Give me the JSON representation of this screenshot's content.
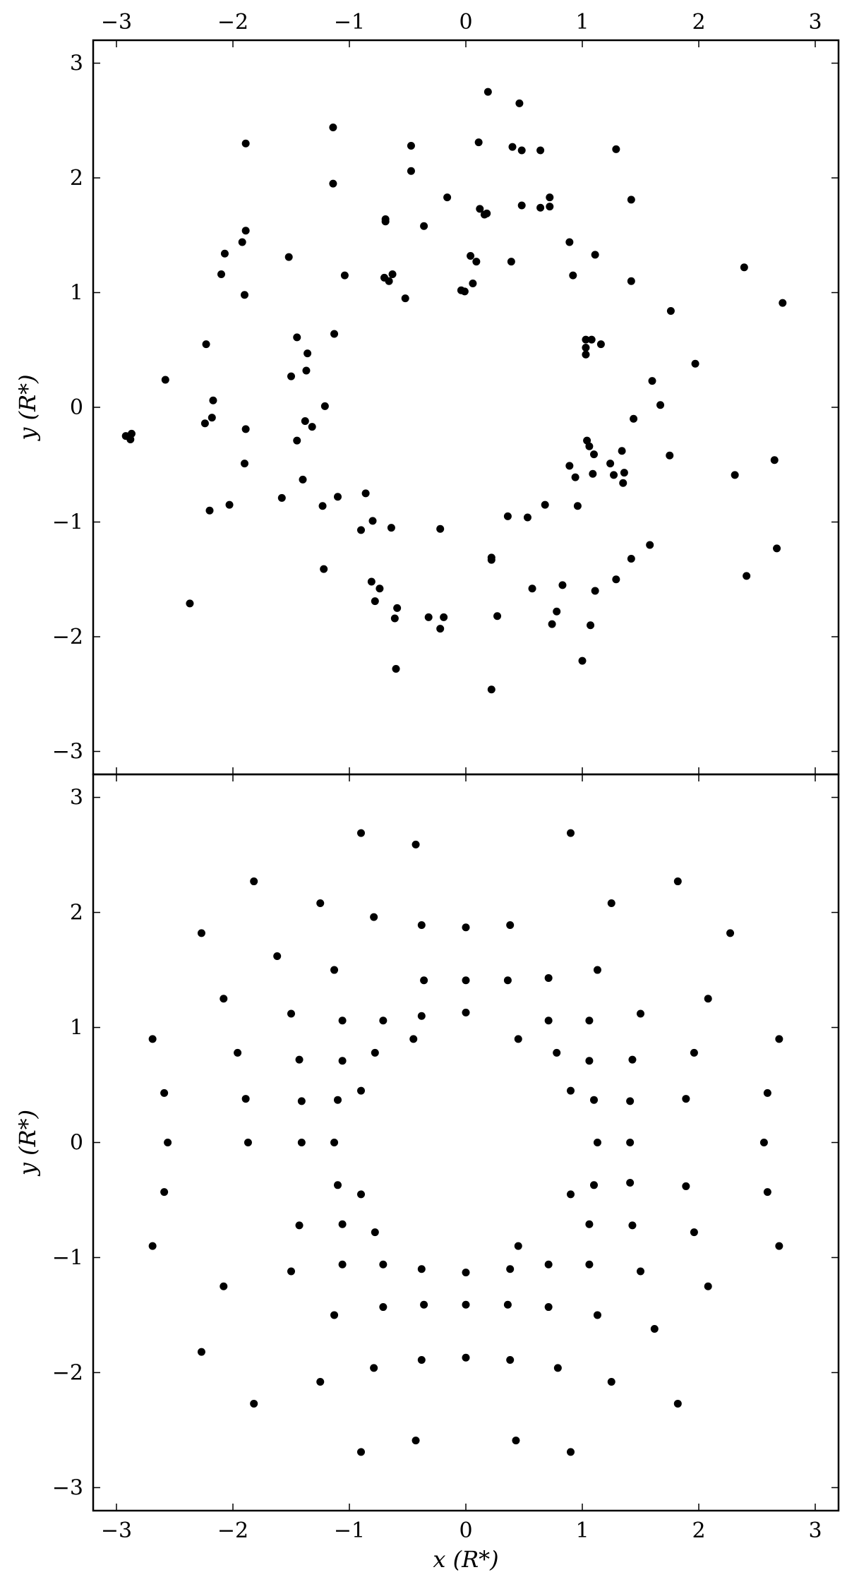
{
  "chart_data": [
    {
      "type": "scatter",
      "title": "",
      "xlabel": "",
      "ylabel": "y (R*)",
      "xlim": [
        -3.2,
        3.2
      ],
      "ylim": [
        -3.2,
        3.2
      ],
      "xticks": [
        "−3",
        "−2",
        "−1",
        "0",
        "1",
        "2",
        "3"
      ],
      "yticks": [
        "3",
        "2",
        "1",
        "0",
        "−1",
        "−2",
        "−3"
      ],
      "x_ticks_on_top": true,
      "grid": false,
      "marker_color": "#000000",
      "points": [
        [
          -2.92,
          -0.25
        ],
        [
          -2.88,
          -0.28
        ],
        [
          -2.87,
          -0.23
        ],
        [
          -2.58,
          0.24
        ],
        [
          -2.37,
          -1.71
        ],
        [
          -2.24,
          -0.14
        ],
        [
          -2.23,
          0.55
        ],
        [
          -2.2,
          -0.9
        ],
        [
          -2.17,
          0.06
        ],
        [
          -2.18,
          -0.09
        ],
        [
          -2.1,
          1.16
        ],
        [
          -2.07,
          1.34
        ],
        [
          -2.03,
          -0.85
        ],
        [
          -1.92,
          1.44
        ],
        [
          -1.89,
          2.3
        ],
        [
          -1.89,
          1.54
        ],
        [
          -1.9,
          0.98
        ],
        [
          -1.89,
          -0.19
        ],
        [
          -1.9,
          -0.49
        ],
        [
          -1.58,
          -0.79
        ],
        [
          -1.52,
          1.31
        ],
        [
          -1.5,
          0.27
        ],
        [
          -1.45,
          0.61
        ],
        [
          -1.45,
          -0.29
        ],
        [
          -1.4,
          -0.63
        ],
        [
          -1.38,
          -0.12
        ],
        [
          -1.36,
          0.47
        ],
        [
          -1.37,
          0.32
        ],
        [
          -1.32,
          -0.17
        ],
        [
          -1.23,
          -0.86
        ],
        [
          -1.22,
          -1.41
        ],
        [
          -1.21,
          0.01
        ],
        [
          -1.14,
          2.44
        ],
        [
          -1.14,
          1.95
        ],
        [
          -1.13,
          0.64
        ],
        [
          -1.1,
          -0.78
        ],
        [
          -1.04,
          1.15
        ],
        [
          -0.9,
          -1.07
        ],
        [
          -0.86,
          -0.75
        ],
        [
          -0.81,
          -1.52
        ],
        [
          -0.8,
          -0.99
        ],
        [
          -0.78,
          -1.69
        ],
        [
          -0.74,
          -1.58
        ],
        [
          -0.7,
          1.13
        ],
        [
          -0.69,
          1.62
        ],
        [
          -0.69,
          1.64
        ],
        [
          -0.66,
          1.1
        ],
        [
          -0.63,
          1.16
        ],
        [
          -0.64,
          -1.05
        ],
        [
          -0.61,
          -1.84
        ],
        [
          -0.59,
          -1.75
        ],
        [
          -0.6,
          -2.28
        ],
        [
          -0.52,
          0.95
        ],
        [
          -0.47,
          2.28
        ],
        [
          -0.47,
          2.06
        ],
        [
          -0.36,
          1.58
        ],
        [
          -0.32,
          -1.83
        ],
        [
          -0.22,
          -1.93
        ],
        [
          -0.22,
          -1.06
        ],
        [
          -0.19,
          -1.83
        ],
        [
          -0.16,
          1.83
        ],
        [
          -0.04,
          1.02
        ],
        [
          -0.01,
          1.01
        ],
        [
          0.04,
          1.32
        ],
        [
          0.06,
          1.08
        ],
        [
          0.09,
          1.27
        ],
        [
          0.11,
          2.31
        ],
        [
          0.12,
          1.73
        ],
        [
          0.16,
          1.68
        ],
        [
          0.18,
          1.69
        ],
        [
          0.19,
          2.75
        ],
        [
          0.22,
          -1.31
        ],
        [
          0.22,
          -1.33
        ],
        [
          0.22,
          -2.46
        ],
        [
          0.27,
          -1.82
        ],
        [
          0.36,
          -0.95
        ],
        [
          0.39,
          1.27
        ],
        [
          0.4,
          2.27
        ],
        [
          0.46,
          2.65
        ],
        [
          0.48,
          2.24
        ],
        [
          0.48,
          1.76
        ],
        [
          0.53,
          -0.96
        ],
        [
          0.57,
          -1.58
        ],
        [
          0.64,
          2.24
        ],
        [
          0.64,
          1.74
        ],
        [
          0.68,
          -0.85
        ],
        [
          0.72,
          1.83
        ],
        [
          0.72,
          1.75
        ],
        [
          0.74,
          -1.89
        ],
        [
          0.78,
          -1.78
        ],
        [
          0.83,
          -1.55
        ],
        [
          0.89,
          1.44
        ],
        [
          0.89,
          -0.51
        ],
        [
          0.92,
          1.15
        ],
        [
          0.94,
          -0.61
        ],
        [
          0.96,
          -0.86
        ],
        [
          1.0,
          -2.21
        ],
        [
          1.03,
          0.52
        ],
        [
          1.03,
          0.46
        ],
        [
          1.03,
          0.59
        ],
        [
          1.04,
          -0.29
        ],
        [
          1.06,
          -0.34
        ],
        [
          1.07,
          -1.9
        ],
        [
          1.08,
          0.59
        ],
        [
          1.09,
          -0.58
        ],
        [
          1.1,
          -0.41
        ],
        [
          1.11,
          1.33
        ],
        [
          1.11,
          -1.6
        ],
        [
          1.16,
          0.55
        ],
        [
          1.24,
          -0.49
        ],
        [
          1.27,
          -0.59
        ],
        [
          1.29,
          2.25
        ],
        [
          1.29,
          -1.5
        ],
        [
          1.34,
          -0.38
        ],
        [
          1.35,
          -0.66
        ],
        [
          1.36,
          -0.57
        ],
        [
          1.42,
          1.81
        ],
        [
          1.42,
          1.1
        ],
        [
          1.42,
          -1.32
        ],
        [
          1.44,
          -0.1
        ],
        [
          1.58,
          -1.2
        ],
        [
          1.6,
          0.23
        ],
        [
          1.67,
          0.02
        ],
        [
          1.75,
          -0.42
        ],
        [
          1.76,
          0.84
        ],
        [
          1.97,
          0.38
        ],
        [
          2.31,
          -0.59
        ],
        [
          2.39,
          1.22
        ],
        [
          2.41,
          -1.47
        ],
        [
          2.65,
          -0.46
        ],
        [
          2.67,
          -1.23
        ],
        [
          2.72,
          0.91
        ]
      ]
    },
    {
      "type": "scatter",
      "title": "",
      "xlabel": "x (R*)",
      "ylabel": "y (R*)",
      "xlim": [
        -3.2,
        3.2
      ],
      "ylim": [
        -3.2,
        3.2
      ],
      "xticks": [
        "−3",
        "−2",
        "−1",
        "0",
        "1",
        "2",
        "3"
      ],
      "yticks": [
        "3",
        "2",
        "1",
        "0",
        "−1",
        "−2",
        "−3"
      ],
      "grid": false,
      "marker_color": "#000000",
      "points": [
        [
          -0.9,
          2.69
        ],
        [
          -0.43,
          2.59
        ],
        [
          0.9,
          2.69
        ],
        [
          -1.82,
          2.27
        ],
        [
          1.82,
          2.27
        ],
        [
          -1.25,
          2.08
        ],
        [
          1.25,
          2.08
        ],
        [
          -0.79,
          1.96
        ],
        [
          -0.38,
          1.89
        ],
        [
          0.0,
          1.87
        ],
        [
          0.38,
          1.89
        ],
        [
          -2.27,
          1.82
        ],
        [
          2.27,
          1.82
        ],
        [
          -1.62,
          1.62
        ],
        [
          -1.13,
          1.5
        ],
        [
          1.13,
          1.5
        ],
        [
          -0.36,
          1.41
        ],
        [
          0.0,
          1.41
        ],
        [
          0.36,
          1.41
        ],
        [
          0.71,
          1.43
        ],
        [
          -2.08,
          1.25
        ],
        [
          2.08,
          1.25
        ],
        [
          -1.5,
          1.12
        ],
        [
          -0.38,
          1.1
        ],
        [
          0.0,
          1.13
        ],
        [
          1.5,
          1.12
        ],
        [
          -1.06,
          1.06
        ],
        [
          -0.71,
          1.06
        ],
        [
          0.71,
          1.06
        ],
        [
          1.06,
          1.06
        ],
        [
          -2.69,
          0.9
        ],
        [
          -0.45,
          0.9
        ],
        [
          0.45,
          0.9
        ],
        [
          2.69,
          0.9
        ],
        [
          -1.96,
          0.78
        ],
        [
          -0.78,
          0.78
        ],
        [
          0.78,
          0.78
        ],
        [
          1.96,
          0.78
        ],
        [
          -1.43,
          0.72
        ],
        [
          -1.06,
          0.71
        ],
        [
          1.06,
          0.71
        ],
        [
          1.43,
          0.72
        ],
        [
          -0.9,
          0.45
        ],
        [
          0.9,
          0.45
        ],
        [
          -2.59,
          0.43
        ],
        [
          2.59,
          0.43
        ],
        [
          -1.89,
          0.38
        ],
        [
          -1.41,
          0.36
        ],
        [
          -1.1,
          0.37
        ],
        [
          1.1,
          0.37
        ],
        [
          1.41,
          0.36
        ],
        [
          1.89,
          0.38
        ],
        [
          -2.56,
          0.0
        ],
        [
          -1.87,
          0.0
        ],
        [
          -1.41,
          0.0
        ],
        [
          -1.13,
          0.0
        ],
        [
          1.13,
          0.0
        ],
        [
          1.41,
          0.0
        ],
        [
          2.56,
          0.0
        ],
        [
          -1.1,
          -0.37
        ],
        [
          1.1,
          -0.37
        ],
        [
          1.41,
          -0.35
        ],
        [
          -2.59,
          -0.43
        ],
        [
          -0.9,
          -0.45
        ],
        [
          0.9,
          -0.45
        ],
        [
          2.59,
          -0.43
        ],
        [
          1.89,
          -0.38
        ],
        [
          -1.43,
          -0.72
        ],
        [
          -1.06,
          -0.71
        ],
        [
          1.06,
          -0.71
        ],
        [
          1.43,
          -0.72
        ],
        [
          -0.78,
          -0.78
        ],
        [
          1.96,
          -0.78
        ],
        [
          -2.69,
          -0.9
        ],
        [
          0.45,
          -0.9
        ],
        [
          2.69,
          -0.9
        ],
        [
          -1.06,
          -1.06
        ],
        [
          -0.71,
          -1.06
        ],
        [
          0.71,
          -1.06
        ],
        [
          1.06,
          -1.06
        ],
        [
          -0.38,
          -1.1
        ],
        [
          0.0,
          -1.13
        ],
        [
          0.38,
          -1.1
        ],
        [
          -1.5,
          -1.12
        ],
        [
          1.5,
          -1.12
        ],
        [
          -2.08,
          -1.25
        ],
        [
          2.08,
          -1.25
        ],
        [
          -0.36,
          -1.41
        ],
        [
          0.0,
          -1.41
        ],
        [
          0.36,
          -1.41
        ],
        [
          -0.71,
          -1.43
        ],
        [
          0.71,
          -1.43
        ],
        [
          -1.13,
          -1.5
        ],
        [
          1.13,
          -1.5
        ],
        [
          1.62,
          -1.62
        ],
        [
          -2.27,
          -1.82
        ],
        [
          -0.38,
          -1.89
        ],
        [
          0.0,
          -1.87
        ],
        [
          0.38,
          -1.89
        ],
        [
          -0.79,
          -1.96
        ],
        [
          0.79,
          -1.96
        ],
        [
          -1.25,
          -2.08
        ],
        [
          1.25,
          -2.08
        ],
        [
          -1.82,
          -2.27
        ],
        [
          1.82,
          -2.27
        ],
        [
          -0.43,
          -2.59
        ],
        [
          0.43,
          -2.59
        ],
        [
          -0.9,
          -2.69
        ],
        [
          0.9,
          -2.69
        ]
      ]
    }
  ]
}
